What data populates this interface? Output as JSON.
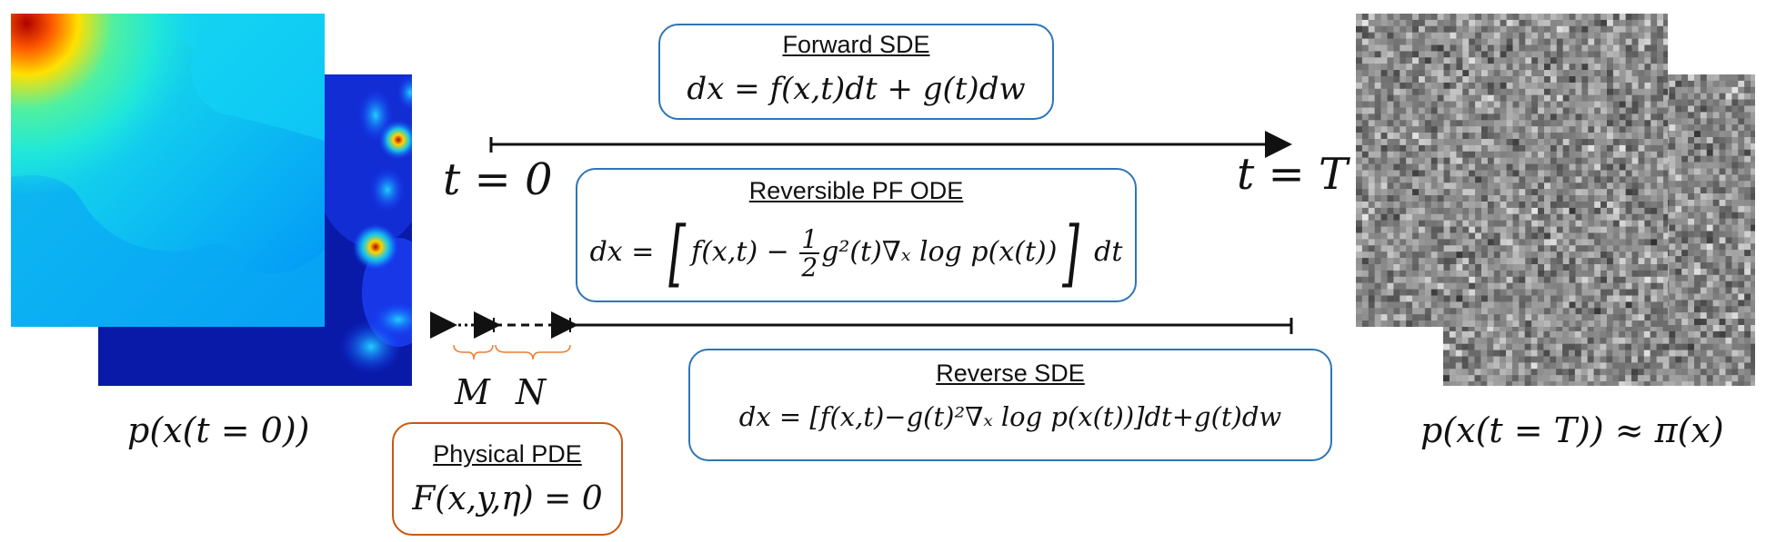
{
  "forward_box": {
    "title": "Forward SDE",
    "equation": "dx = f(x,t)dt + g(t)dw"
  },
  "pf_ode_box": {
    "title": "Reversible PF ODE",
    "eq_prefix": "dx = ",
    "eq_left": "f(x,t) − ",
    "frac_num": "1",
    "frac_den": "2",
    "eq_right": "g²(t)∇ₓ log p(x(t))",
    "eq_suffix": " dt"
  },
  "reverse_box": {
    "title": "Reverse SDE",
    "equation": "dx = [f(x,t)−g(t)²∇ₓ log p(x(t))]dt+g(t)dw"
  },
  "physical_box": {
    "title": "Physical PDE",
    "equation": "F(x,y,η) = 0"
  },
  "timeline": {
    "start_label": "t = 0",
    "end_label": "t = T"
  },
  "segments": {
    "m_label": "M",
    "n_label": "N"
  },
  "captions": {
    "left": "p(x(t = 0))",
    "right": "p(x(t = T)) ≈ π(x)"
  },
  "colors": {
    "blue_box": "#2e75b6",
    "orange_box": "#c55a11",
    "brace": "#ed7d31"
  },
  "images": {
    "left_front": "heatmap-field",
    "left_back": "heatmap-sparse-field",
    "right_front": "gaussian-noise",
    "right_back": "gaussian-noise"
  }
}
